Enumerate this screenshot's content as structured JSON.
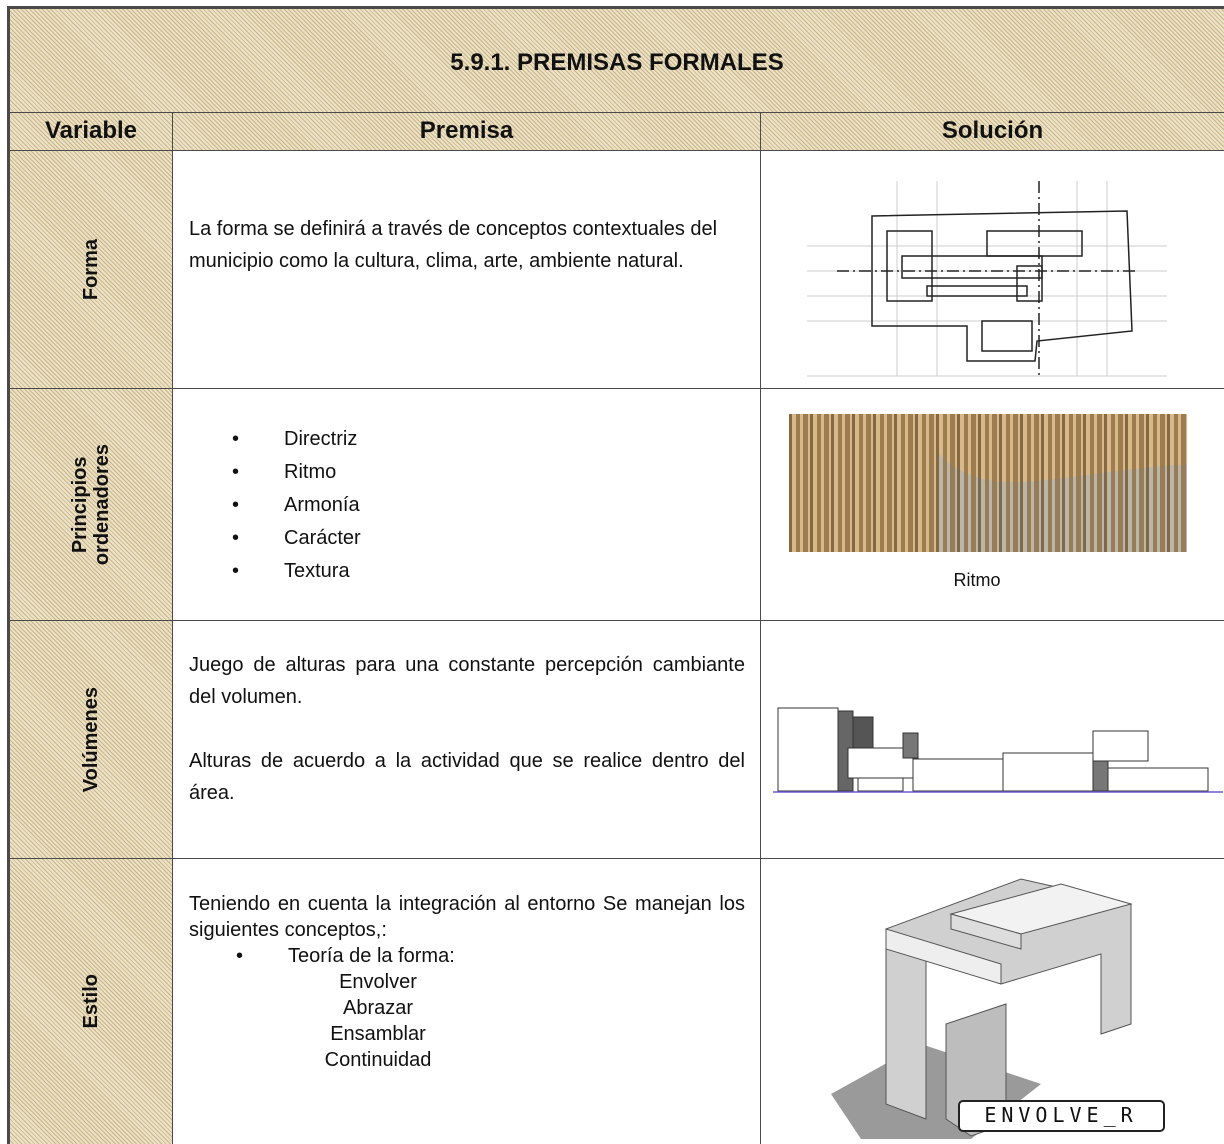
{
  "title": "5.9.1. PREMISAS FORMALES",
  "headers": [
    "Variable",
    "Premisa",
    "Solución"
  ],
  "rows": [
    {
      "variable": [
        "Forma"
      ],
      "premise": [
        "La forma se definirá a través de conceptos contextuales del municipio como la cultura, clima, arte, ambiente natural."
      ]
    },
    {
      "variable": [
        "Principios",
        "ordenadores"
      ],
      "bullets": [
        "Directriz",
        "Ritmo",
        "Armonía",
        "Carácter",
        "Textura"
      ],
      "caption": "Ritmo"
    },
    {
      "variable": [
        "Volúmenes"
      ],
      "premise": [
        "Juego de alturas para una constante percepción cambiante del volumen.",
        "Alturas de acuerdo a la actividad que se realice dentro del área."
      ]
    },
    {
      "variable": [
        "Estilo"
      ],
      "premise": [
        "Teniendo en cuenta la integración al  entorno Se manejan los siguientes conceptos,:"
      ],
      "bullets": [
        "Teoría de la forma:"
      ],
      "subitems": [
        "Envolver",
        "Abrazar",
        "Ensamblar",
        "Continuidad"
      ],
      "image_label": "ENVOLVE_R"
    }
  ]
}
